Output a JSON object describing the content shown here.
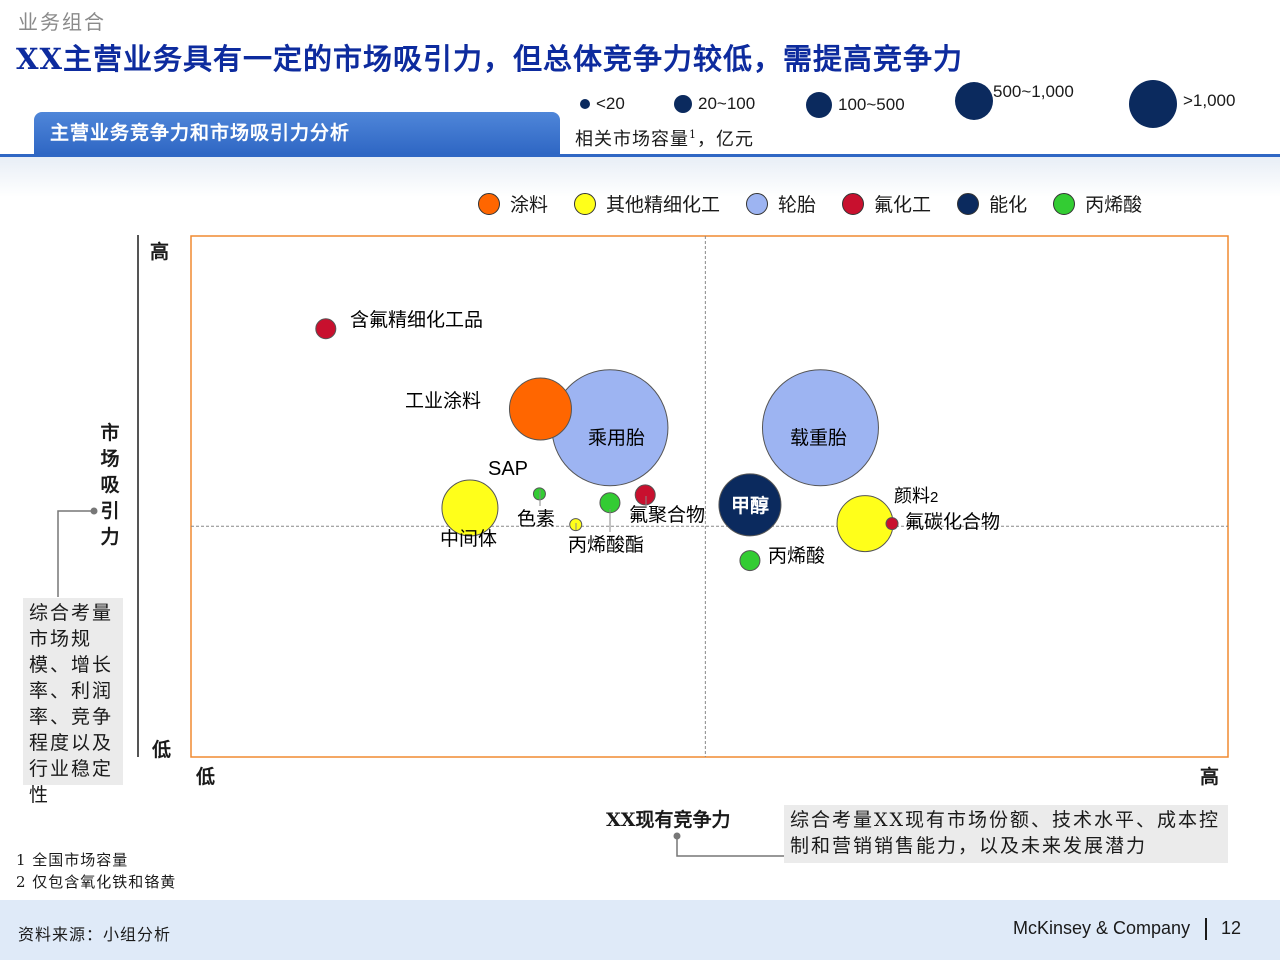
{
  "header": {
    "section": "业务组合",
    "title": "XX主营业务具有一定的市场吸引力，但总体竞争力较低，需提高竞争力",
    "subtitle": "主营业务竞争力和市场吸引力分析"
  },
  "size_legend": {
    "items": [
      {
        "label": "<20"
      },
      {
        "label": "20~100"
      },
      {
        "label": "100~500"
      },
      {
        "label": "500~1,000"
      },
      {
        "label": ">1,000"
      }
    ],
    "caption": "相关市场容量",
    "caption_sup": "1",
    "caption_tail": "，亿元"
  },
  "chart_data": {
    "type": "scatter",
    "x_label": "XX现有竞争力",
    "y_label": "市场吸引力",
    "x_low": "低",
    "x_high": "高",
    "y_high": "高",
    "y_low": "低",
    "xlim": [
      0,
      100
    ],
    "ylim": [
      0,
      100
    ],
    "quadrant_lines": {
      "x": 49.6,
      "y": 44.3
    },
    "categories": [
      {
        "name": "涂料",
        "color": "#ff6600"
      },
      {
        "name": "其他精细化工",
        "color": "#ffff1a"
      },
      {
        "name": "轮胎",
        "color": "#9db4f2"
      },
      {
        "name": "氟化工",
        "color": "#c8102e"
      },
      {
        "name": "能化",
        "color": "#0b2a5e"
      },
      {
        "name": "丙烯酸",
        "color": "#33cc33"
      }
    ],
    "points": [
      {
        "label": "含氟精细化工品",
        "x": 13,
        "y": 82.2,
        "size": "20~100",
        "category": "氟化工"
      },
      {
        "label": "工业涂料",
        "x": 33.7,
        "y": 66.8,
        "size": "500~1,000",
        "category": "涂料"
      },
      {
        "label": "乘用胎",
        "x": 40.4,
        "y": 63.2,
        "size": ">1,000",
        "category": "轮胎"
      },
      {
        "label": "载重胎",
        "x": 60.7,
        "y": 63.2,
        "size": ">1,000",
        "category": "轮胎"
      },
      {
        "label": "SAP",
        "x": 33.6,
        "y": 50.5,
        "size": "<20",
        "category": "丙烯酸"
      },
      {
        "label": "中间体",
        "x": 26.9,
        "y": 47.8,
        "size": "100~500",
        "category": "其他精细化工"
      },
      {
        "label": "色素",
        "x": 37.1,
        "y": 44.6,
        "size": "<20",
        "category": "其他精细化工"
      },
      {
        "label": "丙烯酸酯",
        "x": 40.4,
        "y": 48.8,
        "size": "20~100",
        "category": "丙烯酸"
      },
      {
        "label": "氟聚合物",
        "x": 43.8,
        "y": 50.3,
        "size": "20~100",
        "category": "氟化工"
      },
      {
        "label": "甲醇",
        "x": 53.9,
        "y": 48.4,
        "size": "500~1,000",
        "category": "能化"
      },
      {
        "label": "丙烯酸",
        "x": 53.9,
        "y": 37.7,
        "size": "20~100",
        "category": "丙烯酸"
      },
      {
        "label": "颜料",
        "x": 65,
        "y": 44.8,
        "size": "100~500",
        "category": "其他精细化工"
      },
      {
        "label": "氟碳化合物",
        "x": 67.6,
        "y": 44.8,
        "size": "<20",
        "category": "氟化工"
      }
    ],
    "extra_labels": {
      "pigment_sup": "2"
    }
  },
  "axis_notes": {
    "y_note": "综合考量市场规模、增长率、利润率、竞争程度以及行业稳定性",
    "x_note": "综合考量XX现有市场份额、技术水平、成本控制和营销销售能力，以及未来发展潜力"
  },
  "footnotes": [
    "1 全国市场容量",
    "2 仅包含氧化铁和铬黄"
  ],
  "footer": {
    "source": "资料来源：小组分析",
    "company": "McKinsey & Company",
    "page": "12"
  }
}
